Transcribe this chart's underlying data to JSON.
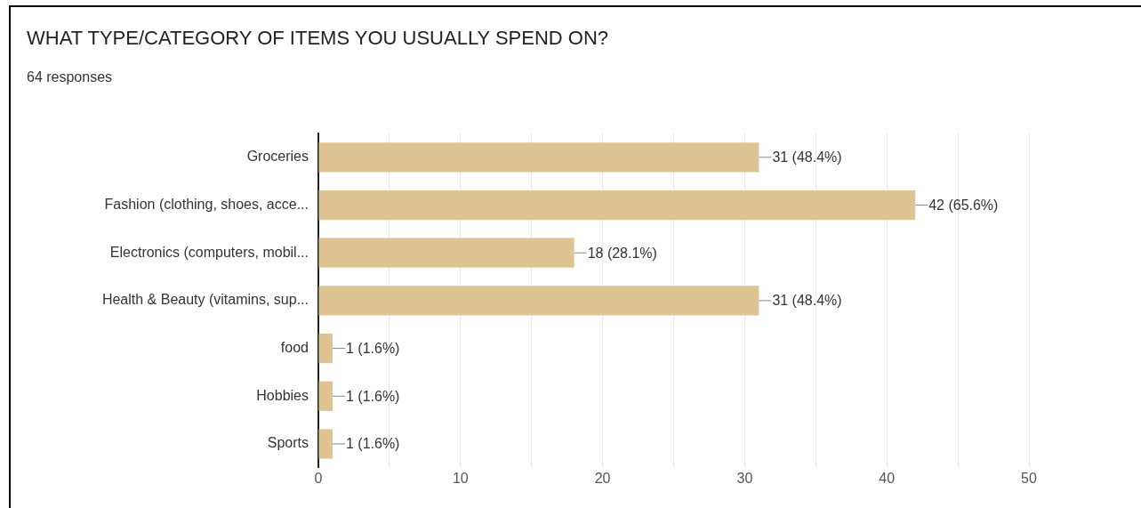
{
  "chart_data": {
    "type": "bar",
    "orientation": "horizontal",
    "title": "WHAT TYPE/CATEGORY OF ITEMS YOU USUALLY SPEND ON?",
    "subtitle": "64 responses",
    "categories": [
      "Groceries",
      "Fashion (clothing, shoes, acce...",
      "Electronics (computers, mobil...",
      "Health & Beauty (vitamins, sup...",
      "food",
      "Hobbies",
      "Sports"
    ],
    "values": [
      31,
      42,
      18,
      31,
      1,
      1,
      1
    ],
    "value_labels": [
      "31 (48.4%)",
      "42 (65.6%)",
      "18 (28.1%)",
      "31 (48.4%)",
      "1 (1.6%)",
      "1 (1.6%)",
      "1 (1.6%)"
    ],
    "color": "#dfc493",
    "xlim": [
      0,
      50
    ],
    "xticks": [
      0,
      {
        "value": 5,
        "label": null
      },
      10,
      {
        "value": 15,
        "label": null
      },
      20,
      {
        "value": 25,
        "label": null
      },
      30,
      {
        "value": 35,
        "label": null
      },
      40,
      {
        "value": 45,
        "label": null
      },
      50
    ],
    "grid": true,
    "legend": false
  }
}
